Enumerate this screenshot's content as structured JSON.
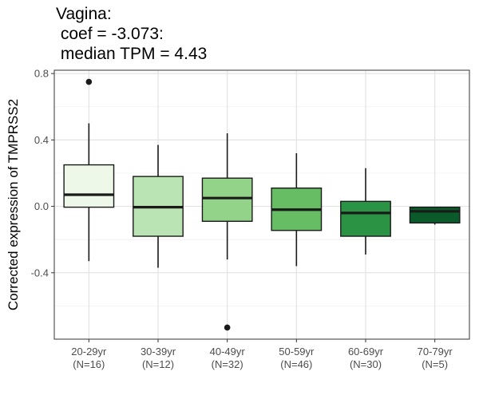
{
  "chart_data": {
    "type": "boxplot",
    "title_lines": [
      "Vagina:",
      " coef = -3.073:",
      " median TPM = 4.43"
    ],
    "xlabel": "",
    "ylabel": "Corrected expression of TMPRSS2",
    "ylim": [
      -0.8,
      0.82
    ],
    "yticks": [
      -0.4,
      0.0,
      0.4,
      0.8
    ],
    "ytick_labels": [
      "-0.4",
      "0.0",
      "0.4",
      "0.8"
    ],
    "grid": true,
    "categories": [
      {
        "label": "20-29yr",
        "n_label": "(N=16)"
      },
      {
        "label": "30-39yr",
        "n_label": "(N=12)"
      },
      {
        "label": "40-49yr",
        "n_label": "(N=32)"
      },
      {
        "label": "50-59yr",
        "n_label": "(N=46)"
      },
      {
        "label": "60-69yr",
        "n_label": "(N=30)"
      },
      {
        "label": "70-79yr",
        "n_label": "(N=5)"
      }
    ],
    "boxes": [
      {
        "whisker_low": -0.33,
        "q1": -0.005,
        "median": 0.07,
        "q3": 0.25,
        "whisker_high": 0.5,
        "outliers": [
          0.75
        ],
        "fill": "#edf8e9"
      },
      {
        "whisker_low": -0.37,
        "q1": -0.18,
        "median": -0.005,
        "q3": 0.18,
        "whisker_high": 0.37,
        "outliers": [],
        "fill": "#bae4b3"
      },
      {
        "whisker_low": -0.32,
        "q1": -0.09,
        "median": 0.05,
        "q3": 0.17,
        "whisker_high": 0.44,
        "outliers": [
          -0.73
        ],
        "fill": "#93d389"
      },
      {
        "whisker_low": -0.36,
        "q1": -0.145,
        "median": -0.02,
        "q3": 0.11,
        "whisker_high": 0.32,
        "outliers": [],
        "fill": "#66bd63"
      },
      {
        "whisker_low": -0.29,
        "q1": -0.18,
        "median": -0.04,
        "q3": 0.03,
        "whisker_high": 0.23,
        "outliers": [],
        "fill": "#2a9444"
      },
      {
        "whisker_low": -0.11,
        "q1": -0.1,
        "median": -0.03,
        "q3": -0.005,
        "whisker_high": -0.005,
        "outliers": [],
        "fill": "#0b5a2a"
      }
    ]
  }
}
